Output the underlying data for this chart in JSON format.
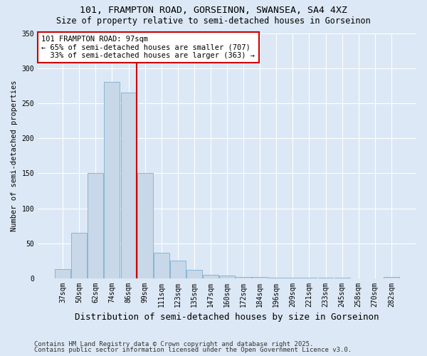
{
  "title1": "101, FRAMPTON ROAD, GORSEINON, SWANSEA, SA4 4XZ",
  "title2": "Size of property relative to semi-detached houses in Gorseinon",
  "xlabel": "Distribution of semi-detached houses by size in Gorseinon",
  "ylabel": "Number of semi-detached properties",
  "footer1": "Contains HM Land Registry data © Crown copyright and database right 2025.",
  "footer2": "Contains public sector information licensed under the Open Government Licence v3.0.",
  "categories": [
    "37sqm",
    "50sqm",
    "62sqm",
    "74sqm",
    "86sqm",
    "99sqm",
    "111sqm",
    "123sqm",
    "135sqm",
    "147sqm",
    "160sqm",
    "172sqm",
    "184sqm",
    "196sqm",
    "209sqm",
    "221sqm",
    "233sqm",
    "245sqm",
    "258sqm",
    "270sqm",
    "282sqm"
  ],
  "values": [
    13,
    65,
    150,
    280,
    265,
    150,
    37,
    25,
    12,
    5,
    4,
    2,
    2,
    1,
    1,
    1,
    1,
    1,
    0,
    0,
    2
  ],
  "bar_color": "#c8d8e8",
  "bar_edgecolor": "#7bafd4",
  "property_line_index": 5,
  "property_line_color": "#cc0000",
  "annotation_text": "101 FRAMPTON ROAD: 97sqm\n← 65% of semi-detached houses are smaller (707)\n  33% of semi-detached houses are larger (363) →",
  "annotation_box_facecolor": "#ffffff",
  "annotation_box_edgecolor": "#cc0000",
  "ylim": [
    0,
    350
  ],
  "yticks": [
    0,
    50,
    100,
    150,
    200,
    250,
    300,
    350
  ],
  "background_color": "#dce8f5",
  "plot_background": "#dce8f5",
  "title1_fontsize": 9.5,
  "title2_fontsize": 8.5,
  "xlabel_fontsize": 9,
  "ylabel_fontsize": 7.5,
  "tick_fontsize": 7,
  "footer_fontsize": 6.5,
  "ann_fontsize": 7.5
}
